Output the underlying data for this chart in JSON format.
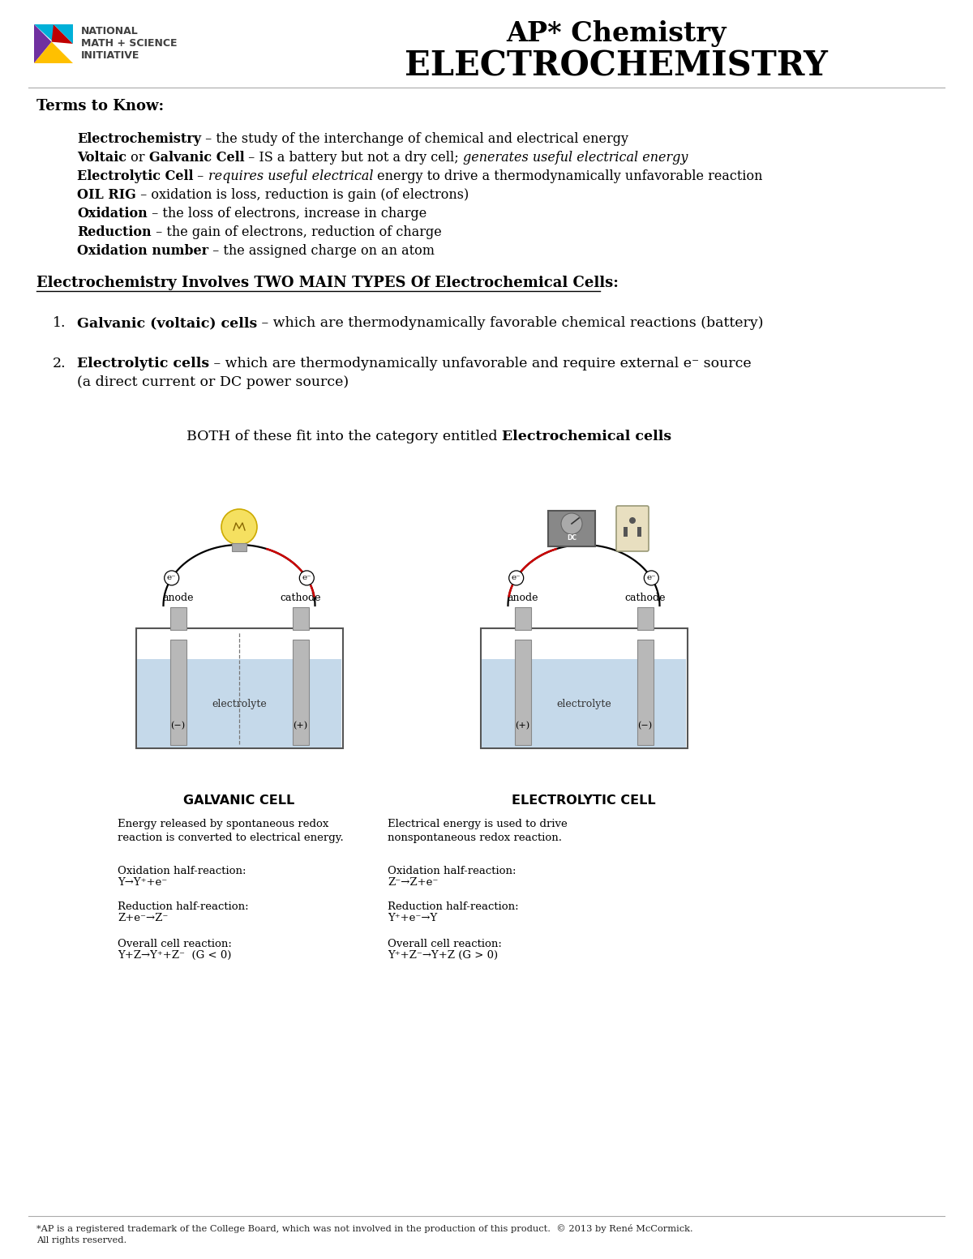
{
  "bg_color": "#ffffff",
  "title_line1": "AP* Chemistry",
  "title_line2": "ELECTROCHEMISTRY",
  "terms_header": "Terms to Know:",
  "section2_header": "Electrochemistry Involves TWO MAIN TYPES Of Electrochemical Cells:",
  "item1_bold": "Galvanic (voltaic) cells",
  "item1_rest": " – which are thermodynamically favorable chemical reactions (battery)",
  "item2_bold": "Electrolytic cells",
  "item2_rest": " – which are thermodynamically unfavorable and require external e⁻ source",
  "item2_rest2": "(a direct current or DC power source)",
  "both_normal": "BOTH of these fit into the category entitled ",
  "both_bold": "Electrochemical cells",
  "galvanic_label": "GALVANIC CELL",
  "electrolytic_label": "ELECTROLYTIC CELL",
  "galvanic_desc": "Energy released by spontaneous redox\nreaction is converted to electrical energy.",
  "electrolytic_desc": "Electrical energy is used to drive\nnonspontaneous redox reaction.",
  "galvanic_ox_label": "Oxidation half-reaction:",
  "galvanic_ox_eq": "Y→Y⁺+e⁻",
  "galvanic_red_label": "Reduction half-reaction:",
  "galvanic_red_eq": "Z+e⁻→Z⁻",
  "galvanic_overall_label": "Overall cell reaction:",
  "galvanic_overall_eq": "Y+Z→Y⁺+Z⁻  (G < 0)",
  "electrolytic_ox_label": "Oxidation half-reaction:",
  "electrolytic_ox_eq": "Z⁻→Z+e⁻",
  "electrolytic_red_label": "Reduction half-reaction:",
  "electrolytic_red_eq": "Y⁺+e⁻→Y",
  "electrolytic_overall_label": "Overall cell reaction:",
  "electrolytic_overall_eq": "Y⁺+Z⁻→Y+Z (G > 0)",
  "footer": "*AP is a registered trademark of the College Board, which was not involved in the production of this product.  © 2013 by René McCormick.\nAll rights reserved.",
  "electrolyte_color": "#c5d9ea",
  "electrode_color": "#b8b8b8",
  "tank_border": "#555555"
}
